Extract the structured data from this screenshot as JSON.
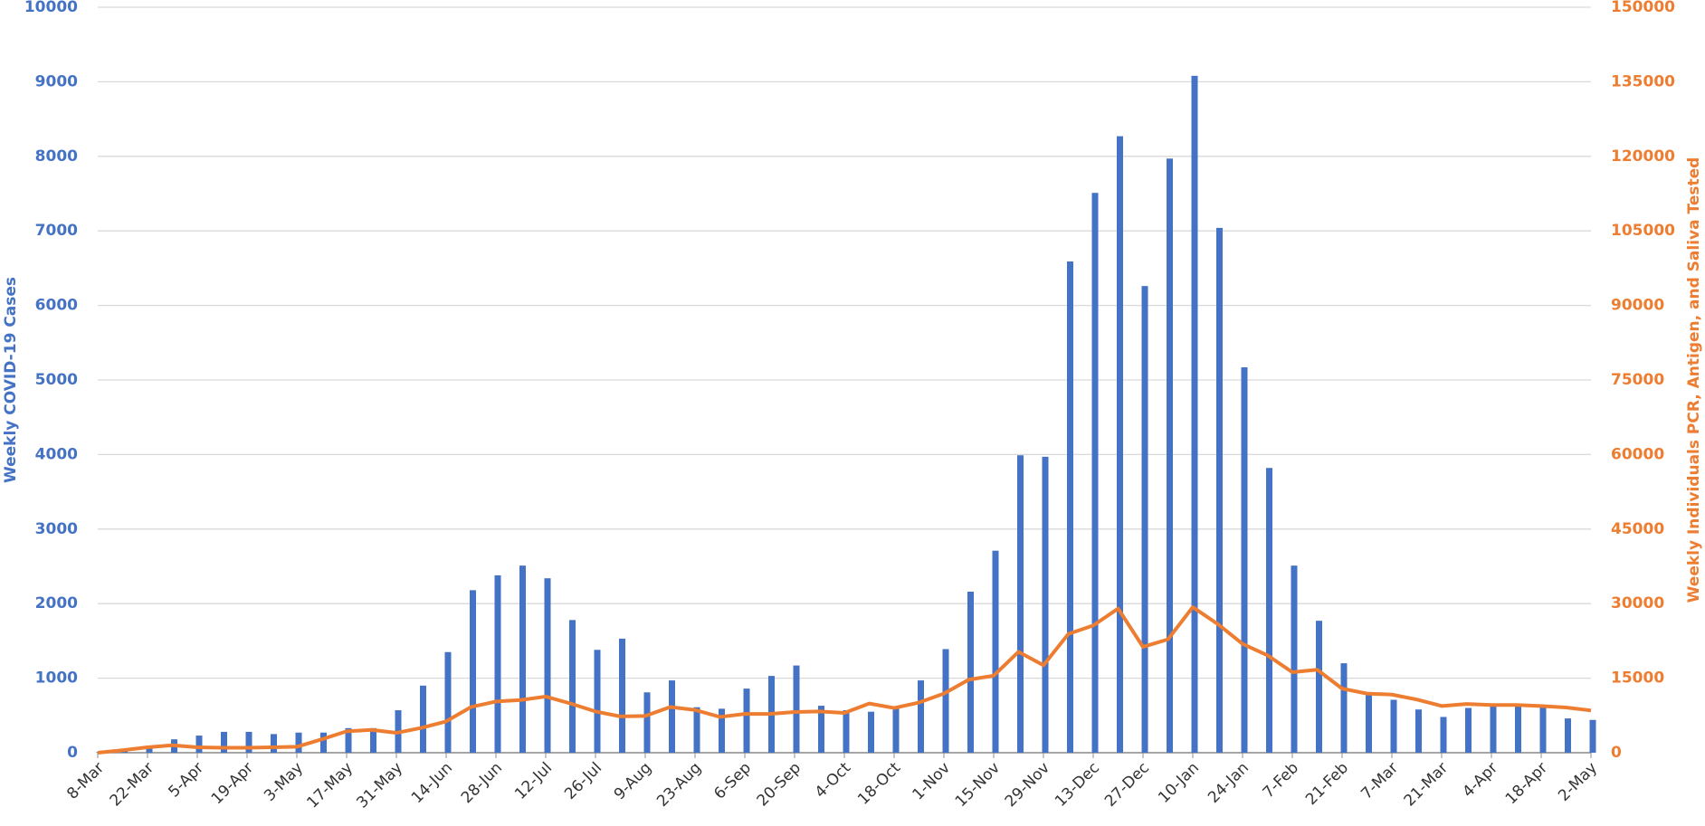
{
  "chart_data": {
    "type": "bar",
    "ylabel": "Weekly COVID-19 Cases",
    "y2label": "Weekly Individuals PCR, Antigen, and Saliva Tested",
    "categories": [
      "8-Mar",
      null,
      "22-Mar",
      null,
      "5-Apr",
      null,
      "19-Apr",
      null,
      "3-May",
      null,
      "17-May",
      null,
      "31-May",
      null,
      "14-Jun",
      null,
      "28-Jun",
      null,
      "12-Jul",
      null,
      "26-Jul",
      null,
      "9-Aug",
      null,
      "23-Aug",
      null,
      "6-Sep",
      null,
      "20-Sep",
      null,
      "4-Oct",
      null,
      "18-Oct",
      null,
      "1-Nov",
      null,
      "15-Nov",
      null,
      "29-Nov",
      null,
      "13-Dec",
      null,
      "27-Dec",
      null,
      "10-Jan",
      null,
      "24-Jan",
      null,
      "7-Feb",
      null,
      "21-Feb",
      null,
      "7-Mar",
      null,
      "21-Mar",
      null,
      "4-Apr",
      null,
      "18-Apr",
      null,
      "2-May"
    ],
    "series": [
      {
        "color": "#4472c4",
        "values": [
          10,
          20,
          80,
          180,
          230,
          280,
          280,
          250,
          270,
          270,
          330,
          330,
          570,
          900,
          1350,
          2180,
          2380,
          2510,
          2340,
          1780,
          1380,
          1530,
          810,
          970,
          610,
          590,
          860,
          1030,
          1170,
          630,
          570,
          550,
          590,
          970,
          1390,
          2160,
          2710,
          3990,
          3970,
          6590,
          7510,
          8270,
          6260,
          7970,
          9080,
          7040,
          5170,
          3820,
          2510,
          1770,
          1200,
          790,
          710,
          580,
          480,
          600,
          630,
          660,
          610,
          460,
          440
        ]
      },
      {
        "type": "line",
        "axis": "y2",
        "color": "#ed7d31",
        "values": [
          0,
          500,
          1100,
          1500,
          1100,
          1000,
          1000,
          1100,
          1200,
          2700,
          4300,
          4600,
          4000,
          5000,
          6300,
          9200,
          10300,
          10600,
          11300,
          9900,
          8300,
          7300,
          7400,
          9200,
          8600,
          7200,
          7800,
          7800,
          8200,
          8300,
          8000,
          9900,
          9000,
          10100,
          11900,
          14700,
          15500,
          20300,
          17600,
          23900,
          25600,
          29000,
          21300,
          22800,
          29300,
          25900,
          21900,
          19600,
          16200,
          16700,
          12900,
          11900,
          11700,
          10700,
          9400,
          9800,
          9600,
          9600,
          9400,
          9100,
          8500
        ]
      }
    ],
    "ylim": [
      0,
      10000
    ],
    "yticks": [
      0,
      1000,
      2000,
      3000,
      4000,
      5000,
      6000,
      7000,
      8000,
      9000,
      10000
    ],
    "y2lim": [
      0,
      150000
    ],
    "y2ticks": [
      0,
      15000,
      30000,
      45000,
      60000,
      75000,
      90000,
      105000,
      120000,
      135000,
      150000
    ],
    "grid": true
  }
}
